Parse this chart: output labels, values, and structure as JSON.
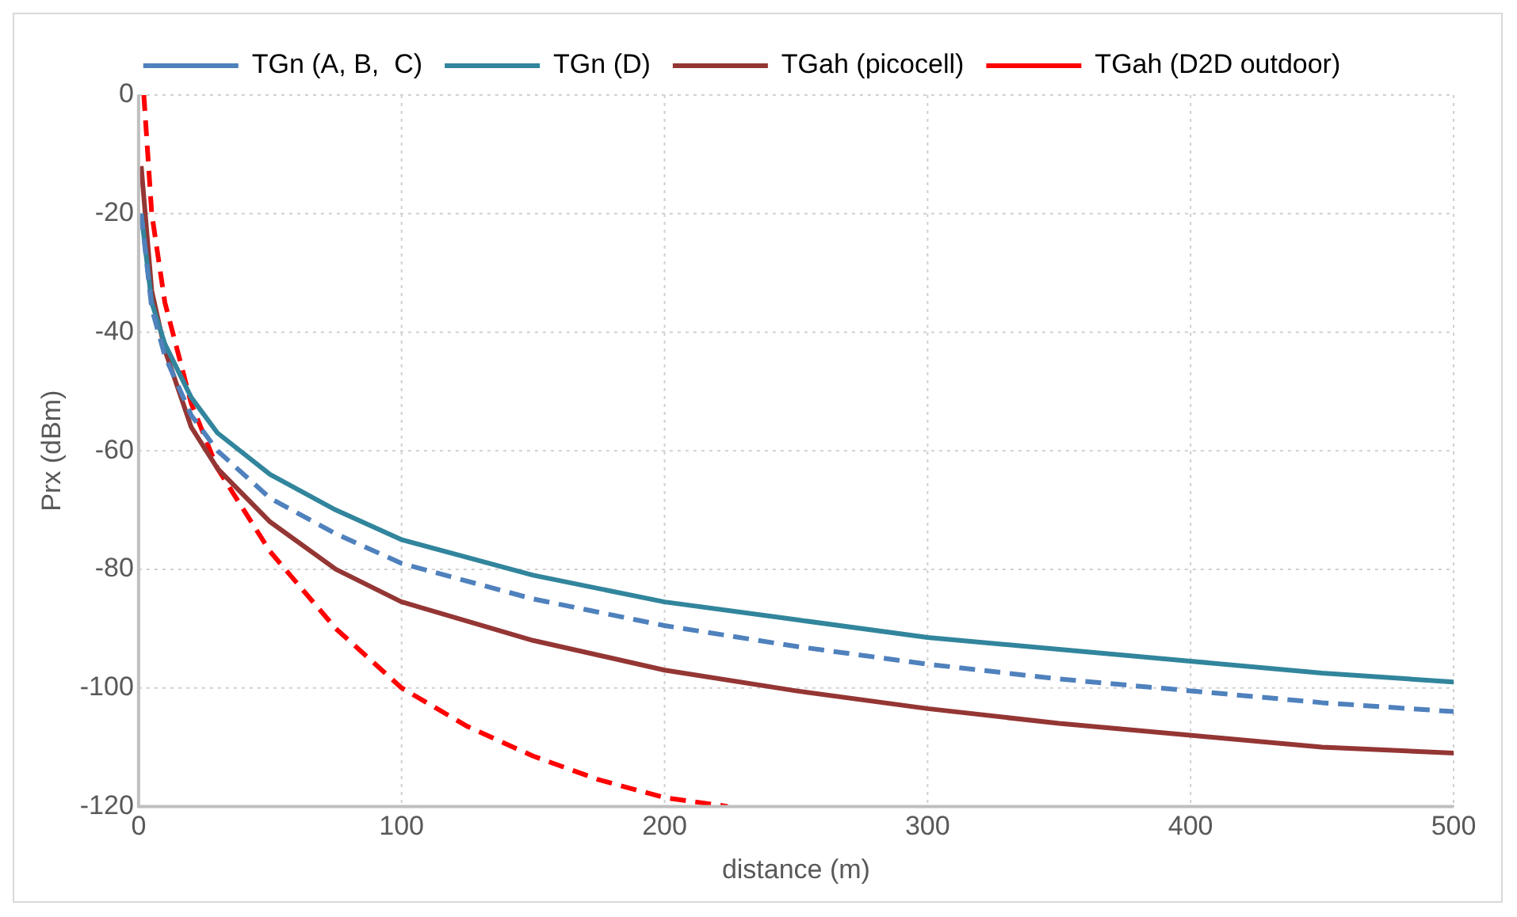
{
  "chart_data": {
    "type": "line",
    "xlabel": "distance (m)",
    "ylabel": "Prx (dBm)",
    "xlim": [
      0,
      500
    ],
    "xticks": [
      0,
      100,
      200,
      300,
      400,
      500
    ],
    "ylim": [
      -120,
      0
    ],
    "yticks": [
      -120,
      -100,
      -80,
      -60,
      -40,
      -20,
      0
    ],
    "grid": true,
    "legend": "top",
    "marker": "none",
    "x": [
      1,
      5,
      10,
      20,
      30,
      50,
      75,
      100,
      150,
      200,
      250,
      300,
      350,
      400,
      450,
      500
    ],
    "series": [
      {
        "name": "TGn (A, B,  C)",
        "color": "#4f81bd",
        "line_style": "dashed",
        "values": [
          -20,
          -36,
          -44,
          -54,
          -60,
          -68,
          -74,
          -79,
          -85,
          -89.5,
          -93,
          -96,
          -98.5,
          -100.5,
          -102.5,
          -104
        ]
      },
      {
        "name": "TGn (D)",
        "color": "#31859c",
        "line_style": "solid",
        "values": [
          -20,
          -35,
          -42,
          -51,
          -57,
          -64,
          -70,
          -75,
          -81,
          -85.5,
          -88.5,
          -91.5,
          -93.5,
          -95.5,
          -97.5,
          -99
        ]
      },
      {
        "name": "TGah (picocell)",
        "color": "#943634",
        "line_style": "solid",
        "values": [
          -12,
          -33,
          -43,
          -56,
          -63,
          -72,
          -80,
          -85.5,
          -92,
          -97,
          -100.5,
          -103.5,
          -106,
          -108,
          -110,
          -111
        ]
      },
      {
        "name": "TGah (D2D outdoor)",
        "color": "#ff0000",
        "line_style": "dashed",
        "x": [
          2,
          5,
          10,
          20,
          30,
          50,
          75,
          100,
          125,
          150,
          175,
          200,
          224
        ],
        "values": [
          0,
          -20,
          -35,
          -52,
          -63,
          -77,
          -90,
          -100,
          -106.5,
          -111.5,
          -115.5,
          -118.5,
          -120
        ]
      }
    ]
  }
}
